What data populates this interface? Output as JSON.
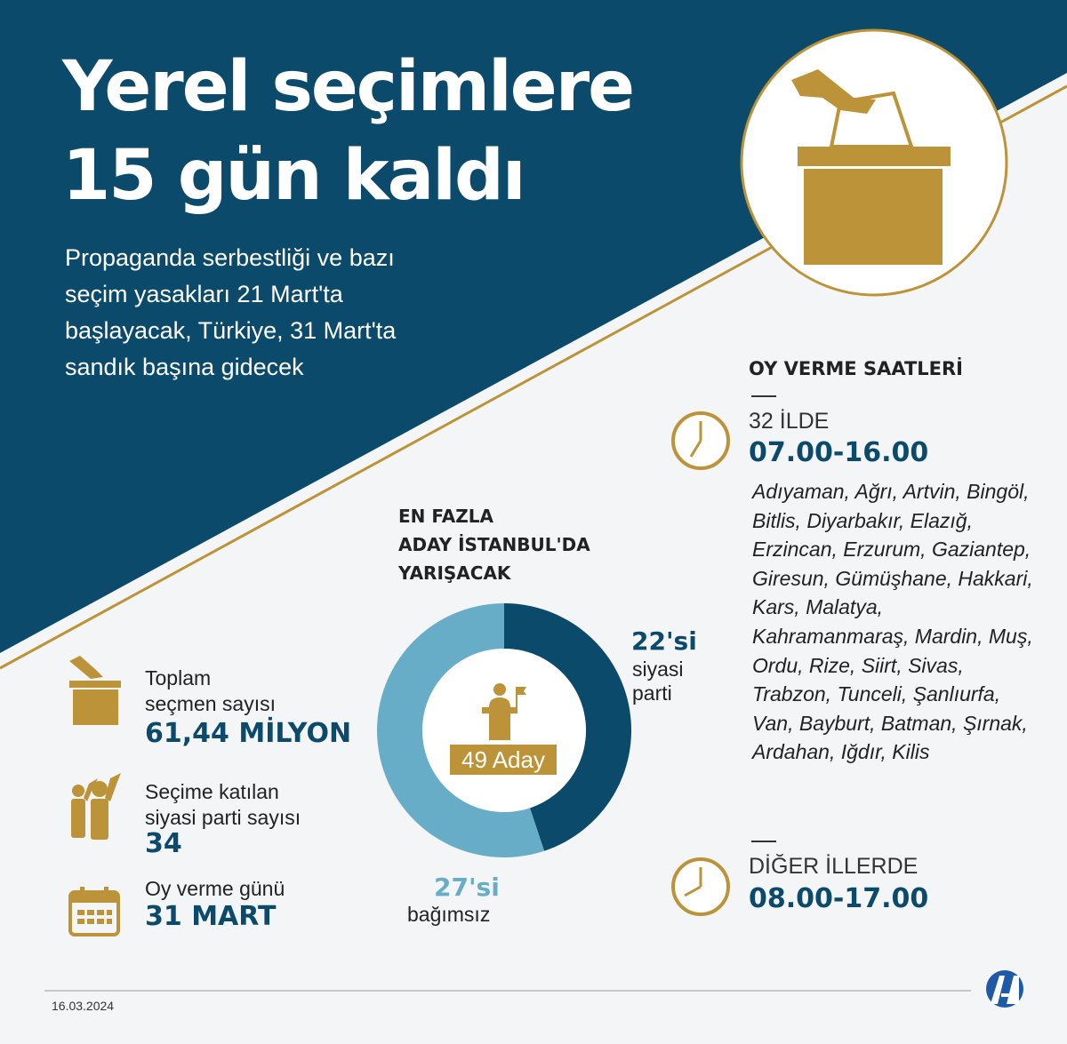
{
  "title_line1": "Yerel seçimlere",
  "title_line2": "15 gün kaldı",
  "subtitle": "Propaganda serbestliği ve bazı seçim yasakları 21 Mart'ta başlayacak, Türkiye, 31 Mart'ta sandık başına gidecek",
  "colors": {
    "navy": "#0b4a6b",
    "gold": "#bc9338",
    "light_blue": "#67adc8"
  },
  "stats": [
    {
      "icon": "ballot-box-icon",
      "label_1": "Toplam",
      "label_2": "seçmen sayısı",
      "value": "61,44 MİLYON"
    },
    {
      "icon": "party-supporters-icon",
      "label_1": "Seçime katılan",
      "label_2": "siyasi parti sayısı",
      "value": "34"
    },
    {
      "icon": "calendar-icon",
      "label_1": "Oy verme günü",
      "value": "31 MART"
    }
  ],
  "donut": {
    "heading": [
      "EN FAZLA",
      "ADAY İSTANBUL'DA",
      "YARIŞACAK"
    ],
    "center_label": "49 Aday",
    "party": {
      "value_label": "22'si",
      "line1": "siyasi",
      "line2": "parti"
    },
    "independent": {
      "value_label": "27'si",
      "line1": "bağımsız"
    }
  },
  "chart_data": {
    "type": "pie",
    "total": 49,
    "slices": [
      {
        "label": "siyasi parti",
        "value": 22,
        "color": "#0b4a6b"
      },
      {
        "label": "bağımsız",
        "value": 27,
        "color": "#67adc8"
      }
    ]
  },
  "hours": {
    "heading": "OY VERME SAATLERİ",
    "group1": {
      "label": "32 İLDE",
      "time": "07.00-16.00",
      "provinces": "Adıyaman, Ağrı, Artvin, Bingöl, Bitlis, Diyarbakır, Elazığ, Erzincan, Erzurum, Gaziantep, Giresun, Gümüşhane, Hakkari, Kars, Malatya, Kahramanmaraş, Mardin, Muş, Ordu, Rize, Siirt, Sivas, Trabzon, Tunceli, Şanlıurfa, Van, Bayburt, Batman, Şırnak, Ardahan, Iğdır, Kilis"
    },
    "group2": {
      "label": "DİĞER İLLERDE",
      "time": "08.00-17.00"
    }
  },
  "footer": {
    "date": "16.03.2024",
    "logo": "AA"
  }
}
